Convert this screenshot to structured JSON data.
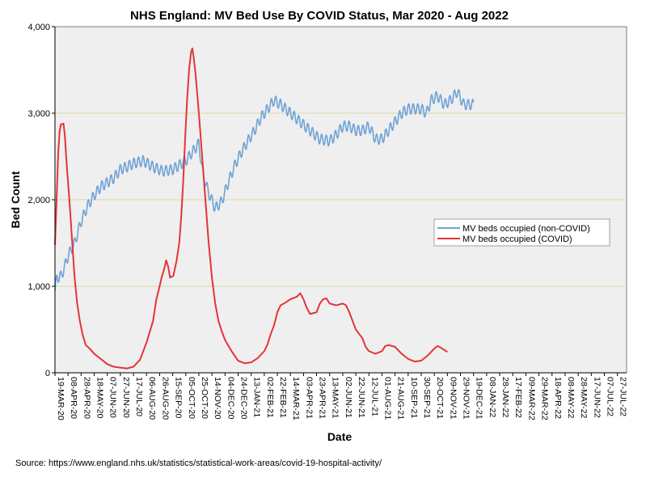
{
  "chart_data": {
    "type": "line",
    "title": "NHS England: MV Bed Use By COVID Status, Mar 2020 - Aug 2022",
    "xlabel": "Date",
    "ylabel": "Bed Count",
    "ylim": [
      0,
      4000
    ],
    "y_ticks": [
      0,
      1000,
      2000,
      3000,
      4000
    ],
    "y_tick_labels": [
      "0",
      "1,000",
      "2,000",
      "3,000",
      "4,000"
    ],
    "gridlines": [
      1000,
      2000,
      3000
    ],
    "x_start": "19-MAR-20",
    "x_end": "09-AUG-22",
    "x_tick_labels": [
      "19-MAR-20",
      "08-APR-20",
      "28-APR-20",
      "18-MAY-20",
      "07-JUN-20",
      "27-JUN-20",
      "17-JUL-20",
      "06-AUG-20",
      "26-AUG-20",
      "15-SEP-20",
      "05-OCT-20",
      "25-OCT-20",
      "14-NOV-20",
      "04-DEC-20",
      "24-DEC-20",
      "13-JAN-21",
      "02-FEB-21",
      "22-FEB-21",
      "14-MAR-21",
      "03-APR-21",
      "23-APR-21",
      "13-MAY-21",
      "02-JUN-21",
      "22-JUN-21",
      "12-JUL-21",
      "01-AUG-21",
      "21-AUG-21",
      "10-SEP-21",
      "30-SEP-21",
      "20-OCT-21",
      "09-NOV-21",
      "29-NOV-21",
      "19-DEC-21",
      "08-JAN-22",
      "28-JAN-22",
      "17-FEB-22",
      "09-MAR-22",
      "29-MAR-22",
      "18-APR-22",
      "08-MAY-22",
      "28-MAY-22",
      "17-JUN-22",
      "07-JUL-22",
      "27-JUL-22"
    ],
    "legend_position": "right-middle",
    "series": [
      {
        "name": "MV beds occupied (non-COVID)",
        "color": "#6fa3d5",
        "weekly_oscillation": 120,
        "points": [
          [
            0,
            950
          ],
          [
            3,
            1100
          ],
          [
            10,
            1120
          ],
          [
            20,
            1350
          ],
          [
            30,
            1500
          ],
          [
            40,
            1750
          ],
          [
            50,
            1930
          ],
          [
            60,
            2050
          ],
          [
            70,
            2150
          ],
          [
            80,
            2200
          ],
          [
            90,
            2250
          ],
          [
            100,
            2350
          ],
          [
            110,
            2380
          ],
          [
            120,
            2420
          ],
          [
            135,
            2450
          ],
          [
            150,
            2380
          ],
          [
            165,
            2330
          ],
          [
            180,
            2350
          ],
          [
            200,
            2450
          ],
          [
            220,
            2650
          ],
          [
            226,
            2300
          ],
          [
            235,
            2080
          ],
          [
            245,
            1900
          ],
          [
            255,
            1980
          ],
          [
            265,
            2200
          ],
          [
            275,
            2400
          ],
          [
            285,
            2550
          ],
          [
            295,
            2680
          ],
          [
            305,
            2800
          ],
          [
            315,
            2950
          ],
          [
            325,
            3050
          ],
          [
            335,
            3150
          ],
          [
            345,
            3100
          ],
          [
            360,
            3000
          ],
          [
            375,
            2900
          ],
          [
            390,
            2800
          ],
          [
            405,
            2700
          ],
          [
            420,
            2680
          ],
          [
            430,
            2750
          ],
          [
            440,
            2850
          ],
          [
            450,
            2850
          ],
          [
            460,
            2800
          ],
          [
            470,
            2800
          ],
          [
            480,
            2850
          ],
          [
            490,
            2700
          ],
          [
            500,
            2700
          ],
          [
            510,
            2800
          ],
          [
            520,
            2900
          ],
          [
            530,
            3000
          ],
          [
            540,
            3050
          ],
          [
            550,
            3050
          ],
          [
            560,
            3050
          ],
          [
            568,
            3000
          ],
          [
            575,
            3150
          ],
          [
            585,
            3200
          ],
          [
            595,
            3100
          ],
          [
            605,
            3150
          ],
          [
            615,
            3250
          ],
          [
            625,
            3100
          ],
          [
            635,
            3100
          ],
          [
            640,
            3100
          ]
        ]
      },
      {
        "name": "MV beds occupied (COVID)",
        "color": "#e53339",
        "points": [
          [
            0,
            1480
          ],
          [
            2,
            1900
          ],
          [
            5,
            2550
          ],
          [
            7,
            2780
          ],
          [
            9,
            2870
          ],
          [
            13,
            2880
          ],
          [
            15,
            2750
          ],
          [
            18,
            2400
          ],
          [
            22,
            2000
          ],
          [
            26,
            1550
          ],
          [
            30,
            1100
          ],
          [
            34,
            800
          ],
          [
            38,
            600
          ],
          [
            42,
            450
          ],
          [
            47,
            320
          ],
          [
            53,
            280
          ],
          [
            60,
            220
          ],
          [
            70,
            160
          ],
          [
            80,
            100
          ],
          [
            90,
            70
          ],
          [
            100,
            60
          ],
          [
            110,
            50
          ],
          [
            120,
            70
          ],
          [
            130,
            150
          ],
          [
            140,
            350
          ],
          [
            150,
            600
          ],
          [
            155,
            850
          ],
          [
            160,
            1000
          ],
          [
            163,
            1100
          ],
          [
            167,
            1200
          ],
          [
            170,
            1300
          ],
          [
            173,
            1230
          ],
          [
            176,
            1100
          ],
          [
            181,
            1120
          ],
          [
            186,
            1300
          ],
          [
            190,
            1500
          ],
          [
            193,
            1800
          ],
          [
            196,
            2200
          ],
          [
            199,
            2700
          ],
          [
            202,
            3150
          ],
          [
            205,
            3500
          ],
          [
            208,
            3700
          ],
          [
            210,
            3750
          ],
          [
            212,
            3650
          ],
          [
            215,
            3450
          ],
          [
            220,
            3000
          ],
          [
            225,
            2500
          ],
          [
            230,
            2000
          ],
          [
            235,
            1500
          ],
          [
            240,
            1100
          ],
          [
            245,
            800
          ],
          [
            250,
            600
          ],
          [
            255,
            480
          ],
          [
            260,
            380
          ],
          [
            270,
            250
          ],
          [
            280,
            140
          ],
          [
            290,
            110
          ],
          [
            300,
            120
          ],
          [
            310,
            170
          ],
          [
            320,
            250
          ],
          [
            325,
            330
          ],
          [
            330,
            450
          ],
          [
            335,
            550
          ],
          [
            340,
            700
          ],
          [
            345,
            780
          ],
          [
            350,
            800
          ],
          [
            360,
            850
          ],
          [
            370,
            880
          ],
          [
            375,
            920
          ],
          [
            380,
            850
          ],
          [
            385,
            750
          ],
          [
            390,
            680
          ],
          [
            400,
            700
          ],
          [
            405,
            800
          ],
          [
            410,
            850
          ],
          [
            415,
            860
          ],
          [
            420,
            800
          ],
          [
            430,
            780
          ],
          [
            440,
            800
          ],
          [
            445,
            780
          ],
          [
            450,
            700
          ],
          [
            455,
            600
          ],
          [
            460,
            500
          ],
          [
            470,
            400
          ],
          [
            475,
            300
          ],
          [
            480,
            250
          ],
          [
            490,
            220
          ],
          [
            500,
            250
          ],
          [
            505,
            310
          ],
          [
            510,
            320
          ],
          [
            520,
            300
          ],
          [
            530,
            220
          ],
          [
            540,
            160
          ],
          [
            550,
            130
          ],
          [
            560,
            140
          ],
          [
            570,
            200
          ],
          [
            580,
            280
          ],
          [
            585,
            310
          ],
          [
            590,
            290
          ],
          [
            600,
            240
          ]
        ]
      }
    ]
  },
  "source": "Source: https://www.england.nhs.uk/statistics/statistical-work-areas/covid-19-hospital-activity/"
}
